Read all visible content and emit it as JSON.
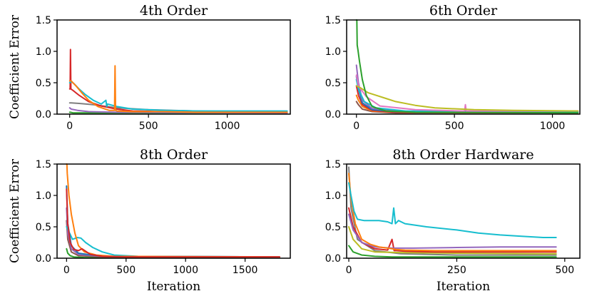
{
  "chart_data": [
    {
      "type": "line",
      "title": "4th Order",
      "xlabel": "",
      "ylabel": "Coefficient Error",
      "xlim": [
        -80,
        1400
      ],
      "ylim": [
        0,
        1.5
      ],
      "xticks": [
        0,
        500,
        1000
      ],
      "yticks": [
        0.0,
        0.5,
        1.0,
        1.5
      ],
      "series": [
        {
          "color": "#2ca02c",
          "x": [
            0,
            5,
            20,
            100,
            300,
            1380
          ],
          "y": [
            0.03,
            0.03,
            0.02,
            0.02,
            0.02,
            0.02
          ]
        },
        {
          "color": "#9467bd",
          "x": [
            0,
            10,
            50,
            120,
            300,
            1380
          ],
          "y": [
            0.1,
            0.08,
            0.06,
            0.04,
            0.03,
            0.02
          ]
        },
        {
          "color": "#7f7f7f",
          "x": [
            0,
            10,
            60,
            150,
            300,
            500,
            800,
            1380
          ],
          "y": [
            0.18,
            0.18,
            0.17,
            0.15,
            0.1,
            0.07,
            0.05,
            0.03
          ]
        },
        {
          "color": "#d62728",
          "x": [
            0,
            3,
            5,
            8,
            20,
            60,
            120,
            200,
            300,
            400,
            600,
            1380
          ],
          "y": [
            0.4,
            0.4,
            1.03,
            0.4,
            0.38,
            0.3,
            0.2,
            0.13,
            0.08,
            0.05,
            0.04,
            0.03
          ]
        },
        {
          "color": "#17becf",
          "x": [
            0,
            10,
            30,
            60,
            100,
            150,
            200,
            230,
            235,
            240,
            300,
            400,
            600,
            800,
            1000,
            1380
          ],
          "y": [
            0.5,
            0.52,
            0.48,
            0.4,
            0.31,
            0.22,
            0.16,
            0.22,
            0.12,
            0.16,
            0.12,
            0.08,
            0.06,
            0.05,
            0.05,
            0.05
          ]
        },
        {
          "color": "#ff7f0e",
          "x": [
            0,
            10,
            40,
            80,
            120,
            180,
            250,
            285,
            288,
            291,
            300,
            400,
            600,
            800,
            1000,
            1380
          ],
          "y": [
            0.53,
            0.53,
            0.45,
            0.33,
            0.22,
            0.12,
            0.06,
            0.06,
            0.77,
            0.06,
            0.05,
            0.04,
            0.04,
            0.03,
            0.03,
            0.03
          ]
        }
      ]
    },
    {
      "type": "line",
      "title": "6th Order",
      "xlabel": "",
      "ylabel": "",
      "xlim": [
        -50,
        1140
      ],
      "ylim": [
        0,
        1.5
      ],
      "xticks": [
        0,
        500,
        1000
      ],
      "yticks": [
        0.0,
        0.5,
        1.0,
        1.5
      ],
      "series": [
        {
          "color": "#8c564b",
          "x": [
            0,
            10,
            30,
            80,
            200,
            1130
          ],
          "y": [
            0.2,
            0.15,
            0.08,
            0.04,
            0.02,
            0.02
          ]
        },
        {
          "color": "#ff7f0e",
          "x": [
            0,
            10,
            30,
            80,
            200,
            1130
          ],
          "y": [
            0.3,
            0.22,
            0.12,
            0.05,
            0.03,
            0.02
          ]
        },
        {
          "color": "#d62728",
          "x": [
            0,
            10,
            30,
            80,
            200,
            1130
          ],
          "y": [
            0.45,
            0.3,
            0.15,
            0.06,
            0.03,
            0.02
          ]
        },
        {
          "color": "#1f77b4",
          "x": [
            0,
            10,
            30,
            80,
            200,
            1130
          ],
          "y": [
            0.6,
            0.4,
            0.18,
            0.07,
            0.04,
            0.03
          ]
        },
        {
          "color": "#9467bd",
          "x": [
            0,
            10,
            30,
            80,
            200,
            1130
          ],
          "y": [
            0.78,
            0.5,
            0.22,
            0.09,
            0.05,
            0.03
          ]
        },
        {
          "color": "#17becf",
          "x": [
            0,
            10,
            40,
            100,
            250,
            1130
          ],
          "y": [
            0.55,
            0.4,
            0.2,
            0.1,
            0.05,
            0.04
          ]
        },
        {
          "color": "#e377c2",
          "x": [
            0,
            10,
            50,
            120,
            300,
            540,
            552,
            556,
            560,
            700,
            1130
          ],
          "y": [
            0.62,
            0.45,
            0.28,
            0.13,
            0.07,
            0.05,
            0.05,
            0.15,
            0.05,
            0.05,
            0.05
          ]
        },
        {
          "color": "#bcbd22",
          "x": [
            0,
            20,
            60,
            100,
            150,
            200,
            300,
            400,
            600,
            800,
            1130
          ],
          "y": [
            0.45,
            0.42,
            0.34,
            0.3,
            0.25,
            0.2,
            0.14,
            0.1,
            0.07,
            0.06,
            0.05
          ]
        },
        {
          "color": "#2ca02c",
          "x": [
            0,
            2,
            4,
            8,
            15,
            30,
            50,
            80,
            150,
            300,
            1130
          ],
          "y": [
            1.5,
            1.5,
            1.1,
            1.02,
            0.85,
            0.55,
            0.3,
            0.12,
            0.05,
            0.03,
            0.02
          ]
        }
      ]
    },
    {
      "type": "line",
      "title": "8th Order",
      "xlabel": "Iteration",
      "ylabel": "Coefficient Error",
      "xlim": [
        -80,
        1880
      ],
      "ylim": [
        0,
        1.5
      ],
      "xticks": [
        0,
        500,
        1000,
        1500
      ],
      "yticks": [
        0.0,
        0.5,
        1.0,
        1.5
      ],
      "series": [
        {
          "color": "#2ca02c",
          "x": [
            0,
            10,
            30,
            60,
            150,
            1790
          ],
          "y": [
            0.15,
            0.08,
            0.04,
            0.02,
            0.01,
            0.01
          ]
        },
        {
          "color": "#8c564b",
          "x": [
            0,
            10,
            40,
            100,
            300,
            1790
          ],
          "y": [
            0.6,
            0.3,
            0.1,
            0.04,
            0.02,
            0.02
          ]
        },
        {
          "color": "#9467bd",
          "x": [
            0,
            10,
            40,
            100,
            300,
            1790
          ],
          "y": [
            0.8,
            0.4,
            0.15,
            0.06,
            0.03,
            0.02
          ]
        },
        {
          "color": "#17becf",
          "x": [
            0,
            20,
            50,
            90,
            120,
            160,
            220,
            300,
            400,
            600,
            1790
          ],
          "y": [
            0.5,
            0.42,
            0.3,
            0.33,
            0.32,
            0.25,
            0.17,
            0.1,
            0.05,
            0.03,
            0.02
          ]
        },
        {
          "color": "#1f77b4",
          "x": [
            0,
            10,
            40,
            100,
            300,
            1790
          ],
          "y": [
            1.15,
            0.55,
            0.2,
            0.08,
            0.03,
            0.02
          ]
        },
        {
          "color": "#ff7f0e",
          "x": [
            0,
            3,
            6,
            20,
            40,
            70,
            100,
            150,
            250,
            400,
            1790
          ],
          "y": [
            1.5,
            1.5,
            1.35,
            1.0,
            0.7,
            0.4,
            0.2,
            0.1,
            0.05,
            0.03,
            0.02
          ]
        },
        {
          "color": "#d62728",
          "x": [
            0,
            10,
            30,
            60,
            100,
            130,
            200,
            300,
            500,
            1790
          ],
          "y": [
            1.1,
            0.55,
            0.25,
            0.14,
            0.12,
            0.15,
            0.06,
            0.03,
            0.02,
            0.02
          ]
        }
      ]
    },
    {
      "type": "line",
      "title": "8th Order Hardware",
      "xlabel": "Iteration",
      "ylabel": "",
      "xlim": [
        -5,
        535
      ],
      "ylim": [
        0,
        1.5
      ],
      "xticks": [
        0,
        250,
        500
      ],
      "yticks": [
        0.0,
        0.5,
        1.0,
        1.5
      ],
      "series": [
        {
          "color": "#2ca02c",
          "x": [
            0,
            10,
            30,
            60,
            100,
            200,
            480
          ],
          "y": [
            0.2,
            0.1,
            0.05,
            0.03,
            0.02,
            0.02,
            0.02
          ]
        },
        {
          "color": "#7f7f7f",
          "x": [
            0,
            5,
            20,
            60,
            120,
            250,
            480
          ],
          "y": [
            1.45,
            0.8,
            0.3,
            0.12,
            0.07,
            0.05,
            0.05
          ]
        },
        {
          "color": "#bcbd22",
          "x": [
            0,
            10,
            30,
            60,
            120,
            250,
            480
          ],
          "y": [
            0.5,
            0.3,
            0.15,
            0.1,
            0.09,
            0.08,
            0.07
          ]
        },
        {
          "color": "#d62728",
          "x": [
            0,
            10,
            30,
            60,
            90,
            100,
            105,
            110,
            130,
            200,
            300,
            480
          ],
          "y": [
            0.8,
            0.5,
            0.25,
            0.15,
            0.13,
            0.3,
            0.12,
            0.12,
            0.11,
            0.1,
            0.1,
            0.1
          ]
        },
        {
          "color": "#9467bd",
          "x": [
            0,
            10,
            30,
            60,
            100,
            150,
            250,
            350,
            480
          ],
          "y": [
            0.7,
            0.45,
            0.25,
            0.18,
            0.16,
            0.16,
            0.17,
            0.18,
            0.18
          ]
        },
        {
          "color": "#ff7f0e",
          "x": [
            0,
            5,
            15,
            30,
            50,
            70,
            90,
            100,
            110,
            130,
            200,
            300,
            480
          ],
          "y": [
            1.35,
            0.95,
            0.55,
            0.3,
            0.22,
            0.18,
            0.16,
            0.15,
            0.14,
            0.13,
            0.12,
            0.12,
            0.12
          ]
        },
        {
          "color": "#17becf",
          "x": [
            0,
            5,
            12,
            20,
            35,
            50,
            70,
            90,
            100,
            104,
            108,
            115,
            130,
            180,
            250,
            300,
            350,
            400,
            450,
            480
          ],
          "y": [
            1.2,
            1.0,
            0.75,
            0.62,
            0.6,
            0.6,
            0.6,
            0.58,
            0.55,
            0.8,
            0.55,
            0.6,
            0.55,
            0.5,
            0.45,
            0.4,
            0.37,
            0.35,
            0.33,
            0.33
          ]
        }
      ]
    }
  ]
}
